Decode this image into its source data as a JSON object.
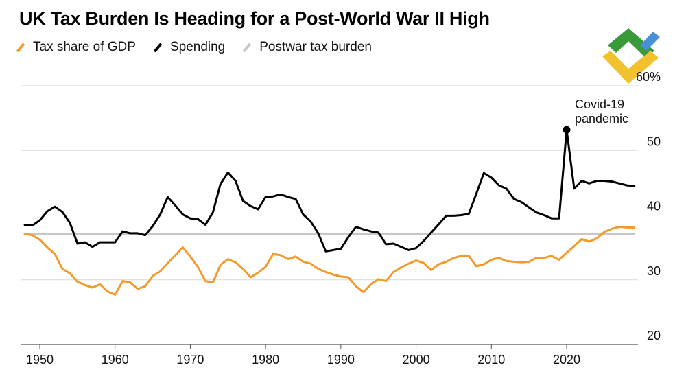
{
  "colors": {
    "tax": "#f39a2b",
    "spending": "#000000",
    "postwar": "#c7c7c7",
    "grid": "#d9d9d9"
  },
  "logo": {
    "icon": "litefinance-logo-icon",
    "green": "#3a9a3a",
    "blue": "#4a90d9",
    "yellow": "#f2c12e"
  },
  "chart_data": {
    "type": "line",
    "title": "UK Tax Burden Is Heading for a Post-World War II High",
    "legend_placement": "top-left",
    "grid": true,
    "xlim": [
      1948,
      2029
    ],
    "ylim": [
      20,
      60
    ],
    "x_ticks": [
      1950,
      1960,
      1970,
      1980,
      1990,
      2000,
      2010,
      2020
    ],
    "y_ticks": [
      {
        "value": 60,
        "label": "60%"
      },
      {
        "value": 50,
        "label": "50"
      },
      {
        "value": 40,
        "label": "40"
      },
      {
        "value": 30,
        "label": "30"
      },
      {
        "value": 20,
        "label": "20"
      }
    ],
    "annotation": {
      "year": 2020,
      "value": 53.2,
      "lines": [
        "Covid-19",
        "pandemic"
      ]
    },
    "series": [
      {
        "name": "Tax share of GDP",
        "x": [
          1948,
          1949,
          1950,
          1951,
          1952,
          1953,
          1954,
          1955,
          1956,
          1957,
          1958,
          1959,
          1960,
          1961,
          1962,
          1963,
          1964,
          1965,
          1966,
          1967,
          1968,
          1969,
          1970,
          1971,
          1972,
          1973,
          1974,
          1975,
          1976,
          1977,
          1978,
          1979,
          1980,
          1981,
          1982,
          1983,
          1984,
          1985,
          1986,
          1987,
          1988,
          1989,
          1990,
          1991,
          1992,
          1993,
          1994,
          1995,
          1996,
          1997,
          1998,
          1999,
          2000,
          2001,
          2002,
          2003,
          2004,
          2005,
          2006,
          2007,
          2008,
          2009,
          2010,
          2011,
          2012,
          2013,
          2014,
          2015,
          2016,
          2017,
          2018,
          2019,
          2020,
          2021,
          2022,
          2023,
          2024,
          2025,
          2026,
          2027,
          2028,
          2029
        ],
        "values": [
          37.1,
          36.9,
          36.2,
          35.0,
          34.0,
          31.7,
          31.0,
          29.7,
          29.2,
          28.8,
          29.3,
          28.2,
          27.7,
          29.8,
          29.6,
          28.6,
          29.0,
          30.6,
          31.3,
          32.6,
          33.8,
          35.0,
          33.6,
          32.0,
          29.8,
          29.6,
          32.3,
          33.2,
          32.7,
          31.7,
          30.4,
          31.1,
          32.0,
          34.0,
          33.8,
          33.2,
          33.6,
          32.8,
          32.5,
          31.7,
          31.2,
          30.8,
          30.5,
          30.4,
          29.0,
          28.1,
          29.3,
          30.1,
          29.8,
          31.2,
          31.9,
          32.5,
          33.0,
          32.6,
          31.5,
          32.4,
          32.8,
          33.4,
          33.7,
          33.7,
          32.1,
          32.4,
          33.1,
          33.4,
          32.9,
          32.8,
          32.7,
          32.8,
          33.4,
          33.4,
          33.7,
          33.1,
          34.2,
          35.2,
          36.3,
          35.9,
          36.4,
          37.4,
          37.9,
          38.2,
          38.1,
          38.1
        ]
      },
      {
        "name": "Spending",
        "x": [
          1948,
          1949,
          1950,
          1951,
          1952,
          1953,
          1954,
          1955,
          1956,
          1957,
          1958,
          1959,
          1960,
          1961,
          1962,
          1963,
          1964,
          1965,
          1966,
          1967,
          1968,
          1969,
          1970,
          1971,
          1972,
          1973,
          1974,
          1975,
          1976,
          1977,
          1978,
          1979,
          1980,
          1981,
          1982,
          1983,
          1984,
          1985,
          1986,
          1987,
          1988,
          1989,
          1990,
          1991,
          1992,
          1993,
          1994,
          1995,
          1996,
          1997,
          1998,
          1999,
          2000,
          2001,
          2002,
          2003,
          2004,
          2005,
          2006,
          2007,
          2008,
          2009,
          2010,
          2011,
          2012,
          2013,
          2014,
          2015,
          2016,
          2017,
          2018,
          2019,
          2020,
          2021,
          2022,
          2023,
          2024,
          2025,
          2026,
          2027,
          2028,
          2029
        ],
        "values": [
          38.5,
          38.4,
          39.2,
          40.6,
          41.3,
          40.5,
          38.8,
          35.6,
          35.8,
          35.1,
          35.8,
          35.8,
          35.8,
          37.5,
          37.2,
          37.2,
          36.9,
          38.3,
          40.1,
          42.8,
          41.5,
          40.1,
          39.5,
          39.4,
          38.5,
          40.4,
          44.8,
          46.6,
          45.3,
          42.2,
          41.4,
          40.9,
          42.8,
          42.9,
          43.2,
          42.8,
          42.5,
          40.1,
          39.0,
          37.2,
          34.4,
          34.6,
          34.8,
          36.6,
          38.2,
          37.8,
          37.5,
          37.3,
          35.5,
          35.6,
          35.1,
          34.6,
          34.9,
          36.0,
          37.3,
          38.6,
          39.9,
          39.9,
          40.0,
          40.2,
          43.3,
          46.5,
          45.8,
          44.6,
          44.1,
          42.5,
          42.0,
          41.2,
          40.4,
          40.0,
          39.5,
          39.5,
          53.2,
          44.1,
          45.3,
          44.9,
          45.3,
          45.3,
          45.2,
          44.9,
          44.6,
          44.5
        ]
      },
      {
        "name": "Postwar tax burden",
        "x": [
          1948,
          2029
        ],
        "values": [
          37.1,
          37.1
        ]
      }
    ]
  }
}
